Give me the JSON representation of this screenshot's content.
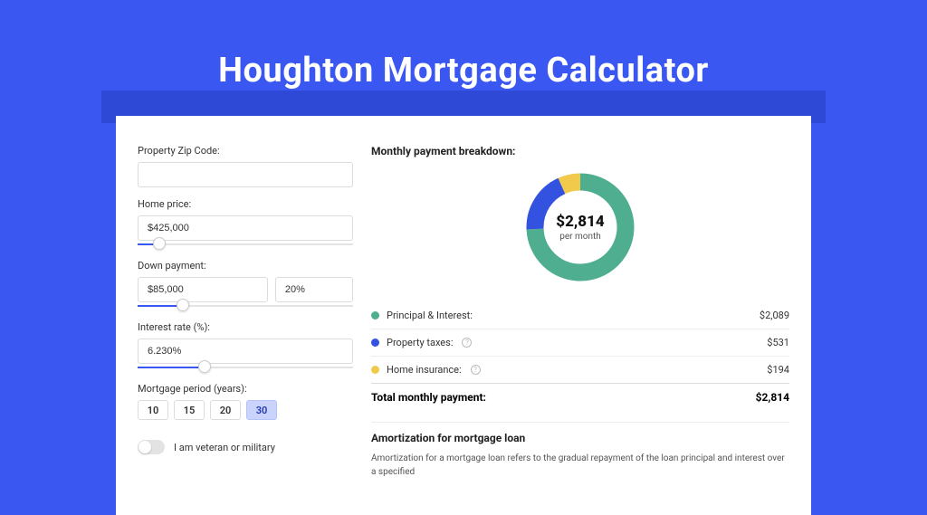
{
  "page": {
    "title": "Houghton Mortgage Calculator",
    "background_color": "#3b57f2",
    "banner_color": "#2d49d6",
    "card_background": "#ffffff"
  },
  "form": {
    "zip": {
      "label": "Property Zip Code:",
      "value": ""
    },
    "home_price": {
      "label": "Home price:",
      "value": "$425,000",
      "slider_fill_pct": 10
    },
    "down_payment": {
      "label": "Down payment:",
      "value": "$85,000",
      "percent": "20%",
      "slider_fill_pct": 21
    },
    "interest_rate": {
      "label": "Interest rate (%):",
      "value": "6.230%",
      "slider_fill_pct": 31
    },
    "mortgage_period": {
      "label": "Mortgage period (years):",
      "options": [
        "10",
        "15",
        "20",
        "30"
      ],
      "active_index": 3
    },
    "veteran": {
      "label": "I am veteran or military",
      "checked": false
    }
  },
  "breakdown": {
    "title": "Monthly payment breakdown:",
    "donut": {
      "center_value": "$2,814",
      "center_sub": "per month",
      "stroke_width": 19,
      "background_color": "#ffffff"
    },
    "items": [
      {
        "label": "Principal & Interest:",
        "amount": "$2,089",
        "value_pct": 74.2,
        "color": "#4fae8f",
        "has_info": false
      },
      {
        "label": "Property taxes:",
        "amount": "$531",
        "value_pct": 18.9,
        "color": "#3452e0",
        "has_info": true
      },
      {
        "label": "Home insurance:",
        "amount": "$194",
        "value_pct": 6.9,
        "color": "#f1c94b",
        "has_info": true
      }
    ],
    "total": {
      "label": "Total monthly payment:",
      "amount": "$2,814"
    }
  },
  "amortization": {
    "title": "Amortization for mortgage loan",
    "text": "Amortization for a mortgage loan refers to the gradual repayment of the loan principal and interest over a specified"
  }
}
